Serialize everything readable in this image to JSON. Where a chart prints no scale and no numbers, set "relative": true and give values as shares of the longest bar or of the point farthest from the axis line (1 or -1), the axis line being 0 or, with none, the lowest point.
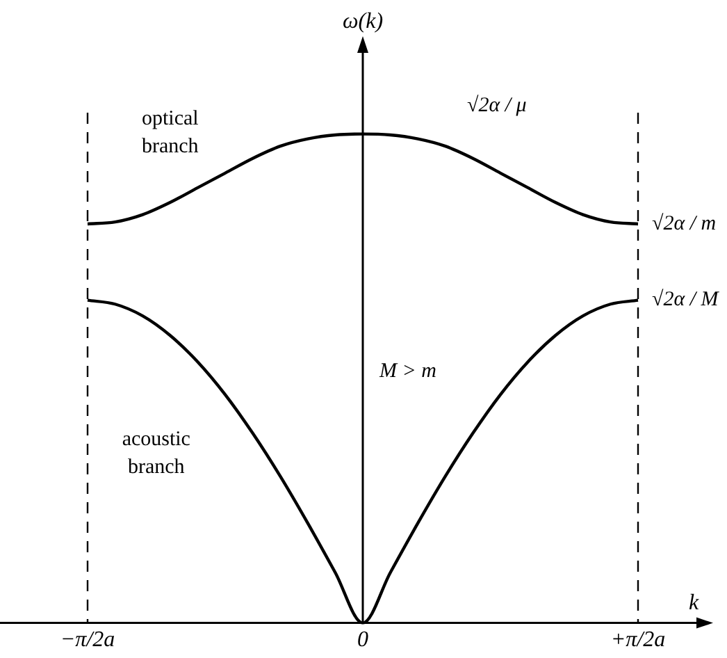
{
  "chart_data": {
    "type": "line",
    "relative": true,
    "xlabel": "k",
    "ylabel": "ω(k)",
    "categories": [
      "−π/2a",
      null,
      null,
      null,
      null,
      null,
      null,
      null,
      null,
      null,
      "0",
      null,
      null,
      null,
      null,
      null,
      null,
      null,
      null,
      null,
      "+π/2a"
    ],
    "series": [
      {
        "name": "optical branch",
        "color": "#000000",
        "values": [
          0.816,
          0.82,
          0.835,
          0.86,
          0.89,
          0.92,
          0.95,
          0.975,
          0.99,
          0.998,
          1,
          0.998,
          0.99,
          0.975,
          0.95,
          0.92,
          0.89,
          0.86,
          0.835,
          0.82,
          0.816
        ]
      },
      {
        "name": "acoustic branch",
        "color": "#000000",
        "values": [
          0.66,
          0.652,
          0.628,
          0.588,
          0.534,
          0.467,
          0.388,
          0.3,
          0.204,
          0.103,
          0,
          0.103,
          0.204,
          0.3,
          0.388,
          0.467,
          0.534,
          0.588,
          0.628,
          0.652,
          0.66
        ]
      }
    ],
    "ref_lines": [
      {
        "axis": "x",
        "value": "−π/2a",
        "line_style": "dashed"
      },
      {
        "axis": "x",
        "value": "+π/2a",
        "line_style": "dashed"
      }
    ],
    "annotations": [
      "√2α / μ",
      "√2α / m",
      "√2α / M",
      "M > m"
    ],
    "legend": false,
    "marker": "none",
    "line_style": "solid"
  }
}
